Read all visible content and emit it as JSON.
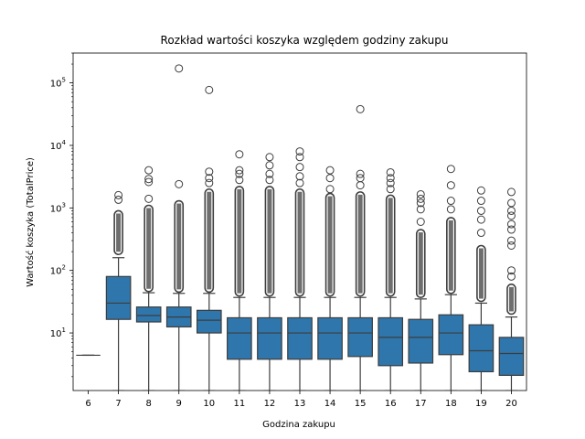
{
  "chart_data": {
    "type": "boxplot",
    "title": "Rozkład wartości koszyka względem godziny zakupu",
    "xlabel": "Godzina zakupu",
    "ylabel": "Wartość koszyka (TotalPrice)",
    "yscale": "log",
    "ylim": [
      1.2,
      300000
    ],
    "yticks": [
      {
        "value": 10,
        "base": "10",
        "exp": "1"
      },
      {
        "value": 100,
        "base": "10",
        "exp": "2"
      },
      {
        "value": 1000,
        "base": "10",
        "exp": "3"
      },
      {
        "value": 10000,
        "base": "10",
        "exp": "4"
      },
      {
        "value": 100000,
        "base": "10",
        "exp": "5"
      }
    ],
    "box_color": "#2f76ac",
    "categories": [
      "6",
      "7",
      "8",
      "9",
      "10",
      "11",
      "12",
      "13",
      "14",
      "15",
      "16",
      "17",
      "18",
      "19",
      "20"
    ],
    "boxes": [
      {
        "hour": "6",
        "whislo": 4.4,
        "q1": 4.4,
        "med": 4.4,
        "q3": 4.4,
        "whishi": 4.4,
        "fliers_low": 4.4,
        "fliers_high": 4.4,
        "extremes": []
      },
      {
        "hour": "7",
        "whislo": 1.2,
        "q1": 16.5,
        "med": 30,
        "q3": 80,
        "whishi": 160,
        "fliers_low": 180,
        "fliers_high": 900,
        "extremes": [
          1350,
          1600
        ]
      },
      {
        "hour": "8",
        "whislo": 1.2,
        "q1": 15,
        "med": 19,
        "q3": 26,
        "whishi": 44,
        "fliers_low": 46,
        "fliers_high": 1100,
        "extremes": [
          1400,
          2600,
          2900,
          4000
        ]
      },
      {
        "hour": "9",
        "whislo": 1.2,
        "q1": 12.5,
        "med": 18,
        "q3": 26,
        "whishi": 43,
        "fliers_low": 45,
        "fliers_high": 1300,
        "extremes": [
          2400,
          170000
        ]
      },
      {
        "hour": "10",
        "whislo": 1.2,
        "q1": 10,
        "med": 16,
        "q3": 23,
        "whishi": 43,
        "fliers_low": 45,
        "fliers_high": 2000,
        "extremes": [
          2500,
          3000,
          3800,
          77000
        ]
      },
      {
        "hour": "11",
        "whislo": 1.2,
        "q1": 3.8,
        "med": 10,
        "q3": 17.5,
        "whishi": 37,
        "fliers_low": 39,
        "fliers_high": 2200,
        "extremes": [
          2800,
          3500,
          4000,
          7200
        ]
      },
      {
        "hour": "12",
        "whislo": 1.2,
        "q1": 3.8,
        "med": 10,
        "q3": 17.5,
        "whishi": 37,
        "fliers_low": 39,
        "fliers_high": 2200,
        "extremes": [
          2800,
          3500,
          4800,
          6500
        ]
      },
      {
        "hour": "13",
        "whislo": 1.2,
        "q1": 3.8,
        "med": 10,
        "q3": 17.5,
        "whishi": 37,
        "fliers_low": 39,
        "fliers_high": 2000,
        "extremes": [
          2500,
          3200,
          4500,
          6500,
          8000
        ]
      },
      {
        "hour": "14",
        "whislo": 1.2,
        "q1": 3.8,
        "med": 10,
        "q3": 17.5,
        "whishi": 37,
        "fliers_low": 39,
        "fliers_high": 1700,
        "extremes": [
          2000,
          3000,
          4000
        ]
      },
      {
        "hour": "15",
        "whislo": 1.2,
        "q1": 4.2,
        "med": 10,
        "q3": 17.5,
        "whishi": 37,
        "fliers_low": 39,
        "fliers_high": 1800,
        "extremes": [
          2300,
          3000,
          3500,
          38000
        ]
      },
      {
        "hour": "16",
        "whislo": 1.2,
        "q1": 3.0,
        "med": 8.5,
        "q3": 17.5,
        "whishi": 37,
        "fliers_low": 39,
        "fliers_high": 1600,
        "extremes": [
          2000,
          2500,
          3000,
          3700
        ]
      },
      {
        "hour": "17",
        "whislo": 1.2,
        "q1": 3.3,
        "med": 8.5,
        "q3": 16.5,
        "whishi": 35,
        "fliers_low": 37,
        "fliers_high": 450,
        "extremes": [
          600,
          950,
          1200,
          1400,
          1650
        ]
      },
      {
        "hour": "18",
        "whislo": 1.2,
        "q1": 4.5,
        "med": 10,
        "q3": 19.5,
        "whishi": 41,
        "fliers_low": 43,
        "fliers_high": 700,
        "extremes": [
          950,
          1300,
          2300,
          4200
        ]
      },
      {
        "hour": "19",
        "whislo": 1.2,
        "q1": 2.4,
        "med": 5.2,
        "q3": 13.5,
        "whishi": 30,
        "fliers_low": 32,
        "fliers_high": 250,
        "extremes": [
          400,
          650,
          900,
          1300,
          1900
        ]
      },
      {
        "hour": "20",
        "whislo": 1.2,
        "q1": 2.1,
        "med": 4.7,
        "q3": 8.5,
        "whishi": 18,
        "fliers_low": 20,
        "fliers_high": 60,
        "extremes": [
          80,
          100,
          250,
          300,
          450,
          550,
          750,
          900,
          1200,
          1800
        ]
      }
    ]
  }
}
